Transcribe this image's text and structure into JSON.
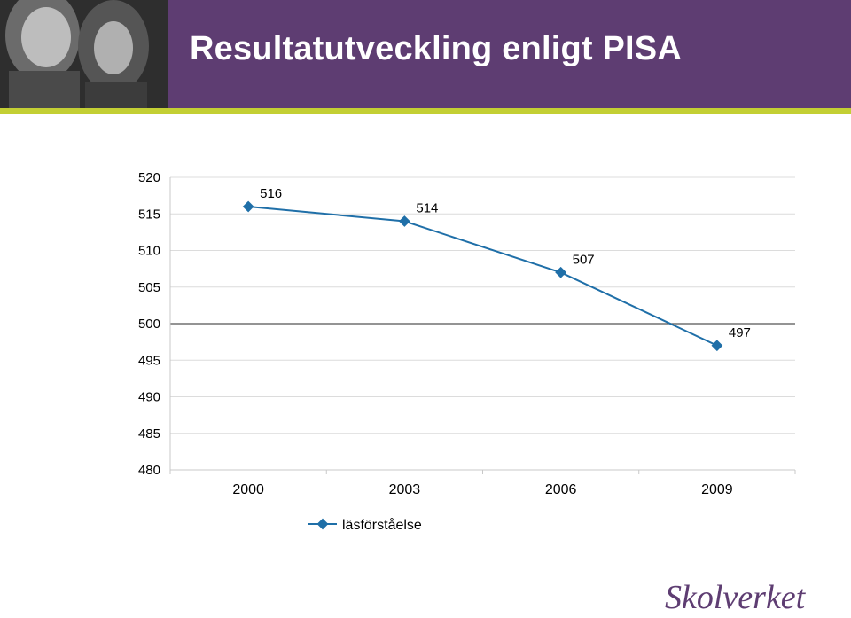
{
  "header": {
    "title": "Resultatutveckling enligt PISA"
  },
  "brand": {
    "logo_text": "Skolverket"
  },
  "colors": {
    "banner": "#5e3d72",
    "accent": "#c3cf34",
    "series": "#1f6fa8"
  },
  "chart_data": {
    "type": "line",
    "x": [
      "2000",
      "2003",
      "2006",
      "2009"
    ],
    "series": [
      {
        "name": "läsförståelse",
        "values": [
          516,
          514,
          507,
          497
        ]
      }
    ],
    "data_labels": [
      "516",
      "514",
      "507",
      "497"
    ],
    "yticks": [
      480,
      485,
      490,
      495,
      500,
      505,
      510,
      515,
      520
    ],
    "ylim": [
      480,
      520
    ],
    "reference_line": 500,
    "grid": true,
    "legend": "bottom-left",
    "title": "",
    "xlabel": "",
    "ylabel": ""
  }
}
